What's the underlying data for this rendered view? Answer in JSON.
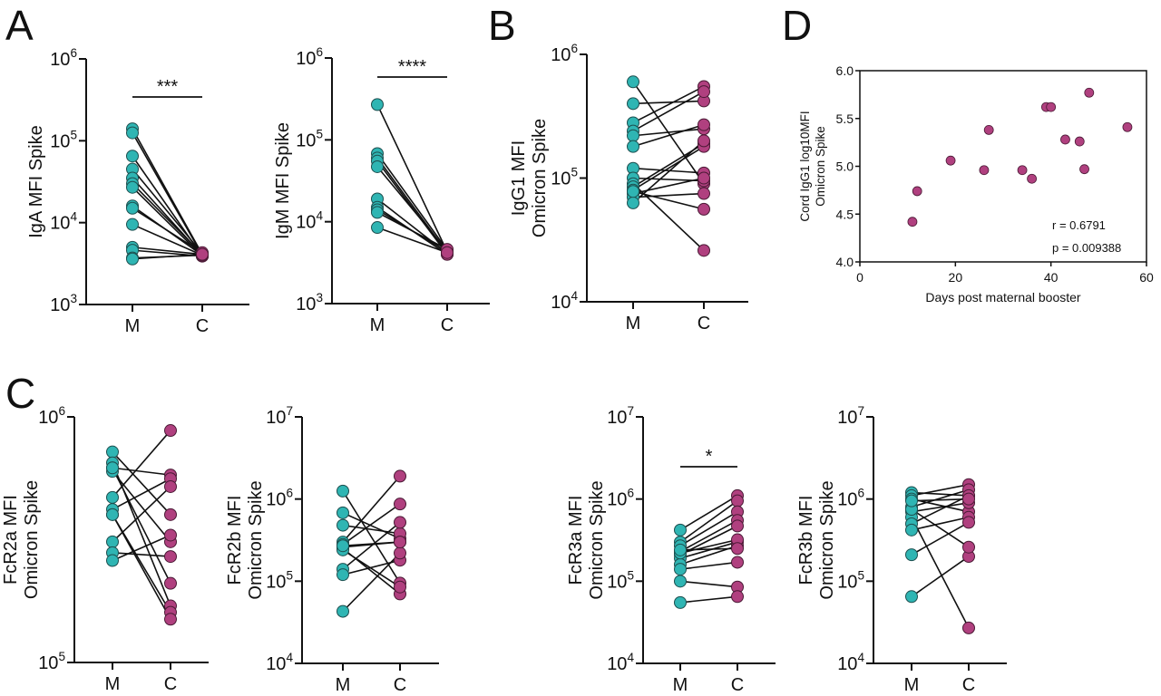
{
  "panel_letters": [
    "A",
    "B",
    "C",
    "D"
  ],
  "colors": {
    "maternal": "#2fb5b3",
    "cord": "#b0407f",
    "line": "#111111"
  },
  "chart_data": [
    {
      "id": "A1",
      "type": "paired-scatter",
      "panel": "A",
      "ylabel": "IgA MFI Spike",
      "yscale": "log",
      "ylim": [
        1000,
        1000000
      ],
      "yticks": [
        "10^3",
        "10^4",
        "10^5",
        "10^6"
      ],
      "categories": [
        "M",
        "C"
      ],
      "significance": "***",
      "pairs": [
        [
          140000,
          4100
        ],
        [
          125000,
          4000
        ],
        [
          65000,
          3900
        ],
        [
          45000,
          4200
        ],
        [
          35000,
          4000
        ],
        [
          30000,
          4100
        ],
        [
          27000,
          3900
        ],
        [
          16000,
          4000
        ],
        [
          15000,
          4300
        ],
        [
          9500,
          4000
        ],
        [
          5000,
          4100
        ],
        [
          4600,
          3900
        ],
        [
          3700,
          4000
        ],
        [
          3600,
          4100
        ]
      ]
    },
    {
      "id": "A2",
      "type": "paired-scatter",
      "panel": "A",
      "ylabel": "IgM MFI Spike",
      "yscale": "log",
      "ylim": [
        1000,
        1000000
      ],
      "yticks": [
        "10^3",
        "10^4",
        "10^5",
        "10^6"
      ],
      "categories": [
        "M",
        "C"
      ],
      "significance": "****",
      "pairs": [
        [
          270000,
          4300
        ],
        [
          68000,
          4500
        ],
        [
          60000,
          4200
        ],
        [
          55000,
          4000
        ],
        [
          47000,
          4400
        ],
        [
          19000,
          4100
        ],
        [
          15000,
          4000
        ],
        [
          14000,
          4300
        ],
        [
          13000,
          4600
        ],
        [
          8500,
          4200
        ]
      ]
    },
    {
      "id": "B",
      "type": "paired-scatter",
      "panel": "B",
      "ylabel": "IgG1 MFI Omicron Spike",
      "yscale": "log",
      "ylim": [
        10000,
        1000000
      ],
      "yticks": [
        "10^4",
        "10^5",
        "10^6"
      ],
      "categories": [
        "M",
        "C"
      ],
      "significance": "",
      "pairs": [
        [
          600000,
          90000
        ],
        [
          400000,
          420000
        ],
        [
          280000,
          550000
        ],
        [
          240000,
          500000
        ],
        [
          220000,
          250000
        ],
        [
          180000,
          270000
        ],
        [
          120000,
          110000
        ],
        [
          100000,
          95000
        ],
        [
          90000,
          26000
        ],
        [
          85000,
          190000
        ],
        [
          80000,
          180000
        ],
        [
          75000,
          100000
        ],
        [
          70000,
          75000
        ],
        [
          63000,
          200000
        ],
        [
          78000,
          56000
        ]
      ]
    },
    {
      "id": "C1",
      "type": "paired-scatter",
      "panel": "C",
      "ylabel": "FcR2a MFI Omicron Spike",
      "yscale": "log",
      "ylim": [
        100000,
        1000000
      ],
      "yticks": [
        "10^5",
        "10^6"
      ],
      "categories": [
        "M",
        "C"
      ],
      "significance": "",
      "pairs": [
        [
          720000,
          400000
        ],
        [
          650000,
          170000
        ],
        [
          620000,
          580000
        ],
        [
          600000,
          310000
        ],
        [
          470000,
          880000
        ],
        [
          420000,
          560000
        ],
        [
          400000,
          160000
        ],
        [
          310000,
          520000
        ],
        [
          280000,
          270000
        ],
        [
          260000,
          330000
        ],
        [
          400000,
          150000
        ],
        [
          620000,
          210000
        ]
      ]
    },
    {
      "id": "C2",
      "type": "paired-scatter",
      "panel": "C",
      "ylabel": "FcR2b MFI Omicron Spike",
      "yscale": "log",
      "ylim": [
        10000,
        10000000
      ],
      "yticks": [
        "10^4",
        "10^5",
        "10^6",
        "10^7"
      ],
      "categories": [
        "M",
        "C"
      ],
      "significance": "",
      "pairs": [
        [
          1250000,
          95000
        ],
        [
          680000,
          330000
        ],
        [
          480000,
          380000
        ],
        [
          300000,
          1900000
        ],
        [
          280000,
          870000
        ],
        [
          260000,
          300000
        ],
        [
          250000,
          70000
        ],
        [
          240000,
          85000
        ],
        [
          140000,
          520000
        ],
        [
          120000,
          180000
        ],
        [
          43000,
          220000
        ],
        [
          270000,
          300000
        ]
      ]
    },
    {
      "id": "C3",
      "type": "paired-scatter",
      "panel": "C",
      "ylabel": "FcR3a MFI Omicron Spike",
      "yscale": "log",
      "ylim": [
        10000,
        10000000
      ],
      "yticks": [
        "10^4",
        "10^5",
        "10^6",
        "10^7"
      ],
      "categories": [
        "M",
        "C"
      ],
      "significance": "*",
      "pairs": [
        [
          420000,
          1100000
        ],
        [
          300000,
          950000
        ],
        [
          270000,
          700000
        ],
        [
          230000,
          550000
        ],
        [
          210000,
          470000
        ],
        [
          190000,
          300000
        ],
        [
          160000,
          270000
        ],
        [
          140000,
          170000
        ],
        [
          100000,
          85000
        ],
        [
          55000,
          65000
        ],
        [
          220000,
          320000
        ],
        [
          240000,
          250000
        ]
      ]
    },
    {
      "id": "C4",
      "type": "paired-scatter",
      "panel": "C",
      "ylabel": "FcR3b MFI Omicron Spike",
      "yscale": "log",
      "ylim": [
        10000,
        10000000
      ],
      "yticks": [
        "10^4",
        "10^5",
        "10^6",
        "10^7"
      ],
      "categories": [
        "M",
        "C"
      ],
      "significance": "",
      "pairs": [
        [
          1200000,
          1100000
        ],
        [
          1100000,
          1500000
        ],
        [
          1000000,
          700000
        ],
        [
          800000,
          1300000
        ],
        [
          700000,
          900000
        ],
        [
          600000,
          27000
        ],
        [
          500000,
          1100000
        ],
        [
          420000,
          600000
        ],
        [
          210000,
          520000
        ],
        [
          65000,
          200000
        ],
        [
          750000,
          260000
        ],
        [
          950000,
          1000000
        ]
      ]
    },
    {
      "id": "D",
      "type": "scatter",
      "panel": "D",
      "xlabel": "Days post maternal booster",
      "ylabel": "Cord IgG1 log10MFI Omicron Spike",
      "xlim": [
        0,
        60
      ],
      "ylim": [
        4.0,
        6.0
      ],
      "xticks": [
        "0",
        "20",
        "40",
        "60"
      ],
      "yticks": [
        "4.0",
        "4.5",
        "5.0",
        "5.5",
        "6.0"
      ],
      "x": [
        11,
        12,
        19,
        26,
        27,
        34,
        36,
        39,
        40,
        43,
        46,
        47,
        48,
        56
      ],
      "y": [
        4.42,
        4.74,
        5.06,
        4.96,
        5.38,
        4.96,
        4.87,
        5.62,
        5.62,
        5.28,
        5.26,
        4.97,
        5.77,
        5.41
      ],
      "annotations": [
        "r = 0.6791",
        "p = 0.009388"
      ]
    }
  ]
}
